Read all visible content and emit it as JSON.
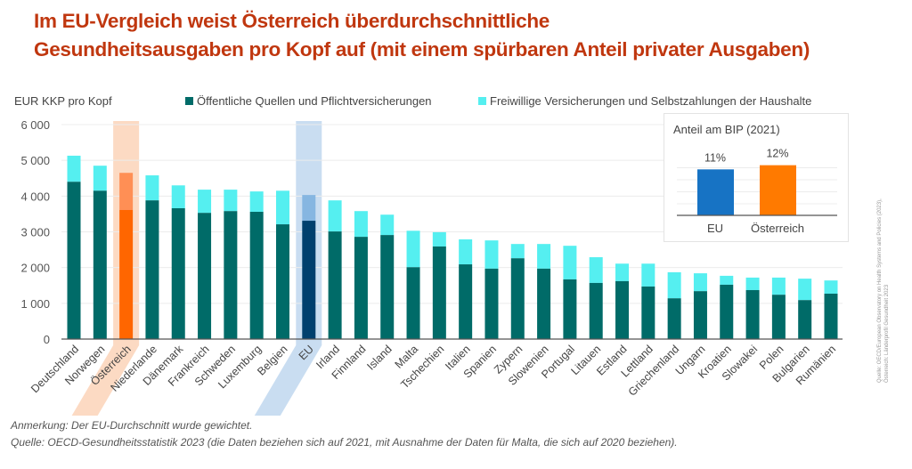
{
  "title_lines": [
    "Im EU-Vergleich weist Österreich überdurchschnittliche",
    "Gesundheitsausgaben pro Kopf auf (mit einem spürbaren Anteil privater Ausgaben)"
  ],
  "colors": {
    "title": "#c0370f",
    "public": "#006b68",
    "private": "#55eff0",
    "austria_public": "#ff6600",
    "austria_private": "#ff8f55",
    "austria_highlight": "#fcd3b8",
    "eu_public": "#00406e",
    "eu_private": "#86b6e1",
    "eu_highlight": "#bfd7ee",
    "inset_eu": "#1773c4",
    "inset_at": "#ff7a00"
  },
  "chart_data": {
    "type": "bar",
    "stacked": true,
    "ylabel": "EUR KKP pro Kopf",
    "ylim": [
      0,
      6000
    ],
    "yticks": [
      0,
      1000,
      2000,
      3000,
      4000,
      5000,
      6000
    ],
    "ytick_labels": [
      "0",
      "1 000",
      "2 000",
      "3 000",
      "4 000",
      "5 000",
      "6 000"
    ],
    "grid": true,
    "legend_position": "top",
    "categories": [
      "Deutschland",
      "Norwegen",
      "Österreich",
      "Niederlande",
      "Dänemark",
      "Frankreich",
      "Schweden",
      "Luxemburg",
      "Belgien",
      "EU",
      "Irland",
      "Finnland",
      "Island",
      "Malta",
      "Tschechien",
      "Italien",
      "Spanien",
      "Zypern",
      "Slowenien",
      "Portugal",
      "Litauen",
      "Estland",
      "Lettland",
      "Griechenland",
      "Ungarn",
      "Kroatien",
      "Slowakei",
      "Polen",
      "Bulgarien",
      "Rumänien"
    ],
    "highlight": {
      "Österreich": "austria",
      "EU": "eu"
    },
    "series": [
      {
        "name": "Öffentliche Quellen und Pflichtversicherungen",
        "values": [
          4400,
          4150,
          3610,
          3880,
          3660,
          3530,
          3580,
          3560,
          3210,
          3310,
          3010,
          2860,
          2910,
          2010,
          2590,
          2090,
          1970,
          2260,
          1970,
          1670,
          1570,
          1620,
          1470,
          1140,
          1340,
          1520,
          1370,
          1240,
          1090,
          1270
        ]
      },
      {
        "name": "Freiwillige Versicherungen und Selbstzahlungen der Haushalte",
        "values": [
          730,
          700,
          1040,
          700,
          640,
          650,
          600,
          570,
          940,
          720,
          870,
          720,
          570,
          1020,
          400,
          700,
          790,
          400,
          690,
          940,
          720,
          490,
          640,
          730,
          500,
          250,
          350,
          480,
          600,
          370
        ]
      }
    ],
    "inset": {
      "title": "Anteil am BIP (2021)",
      "type": "bar",
      "categories": [
        "EU",
        "Österreich"
      ],
      "values": [
        11,
        12
      ],
      "labels": [
        "11%",
        "12%"
      ]
    }
  },
  "notes": {
    "annotation": "Anmerkung: Der EU-Durchschnitt wurde gewichtet.",
    "source": "Quelle: OECD-Gesundheitsstatistik 2023 (die Daten beziehen sich auf 2021, mit Ausnahme der Daten für Malta, die sich auf 2020 beziehen)."
  },
  "side_source_lines": [
    "Quelle: OECD/European Observatory on Health Systems and Policies (2023),",
    "Österreich: Länderprofil Gesundheit 2023"
  ]
}
